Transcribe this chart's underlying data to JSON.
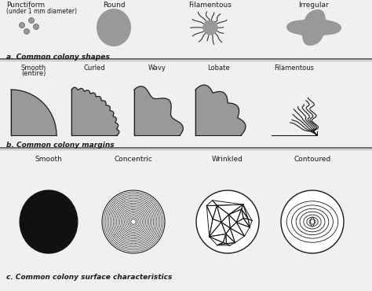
{
  "bg_color": "#f0f0f0",
  "dark": "#1a1a1a",
  "fill_gray": "#999999",
  "section_a_label": "a. Common colony shapes",
  "section_b_label": "b. Common colony margins",
  "section_c_label": "c. Common colony surface characteristics",
  "shapes_labels": [
    "Punctiform\n(under 1 mm diameter)",
    "Round",
    "Filamentous",
    "Irregular"
  ],
  "margins_labels": [
    "Smooth\n(entire)",
    "Curled",
    "Wavy",
    "Lobate",
    "Filamentous"
  ],
  "surface_labels": [
    "Smooth",
    "Concentric",
    "Wrinkled",
    "Contoured"
  ],
  "fig_w": 4.74,
  "fig_h": 3.7,
  "dpi": 100
}
